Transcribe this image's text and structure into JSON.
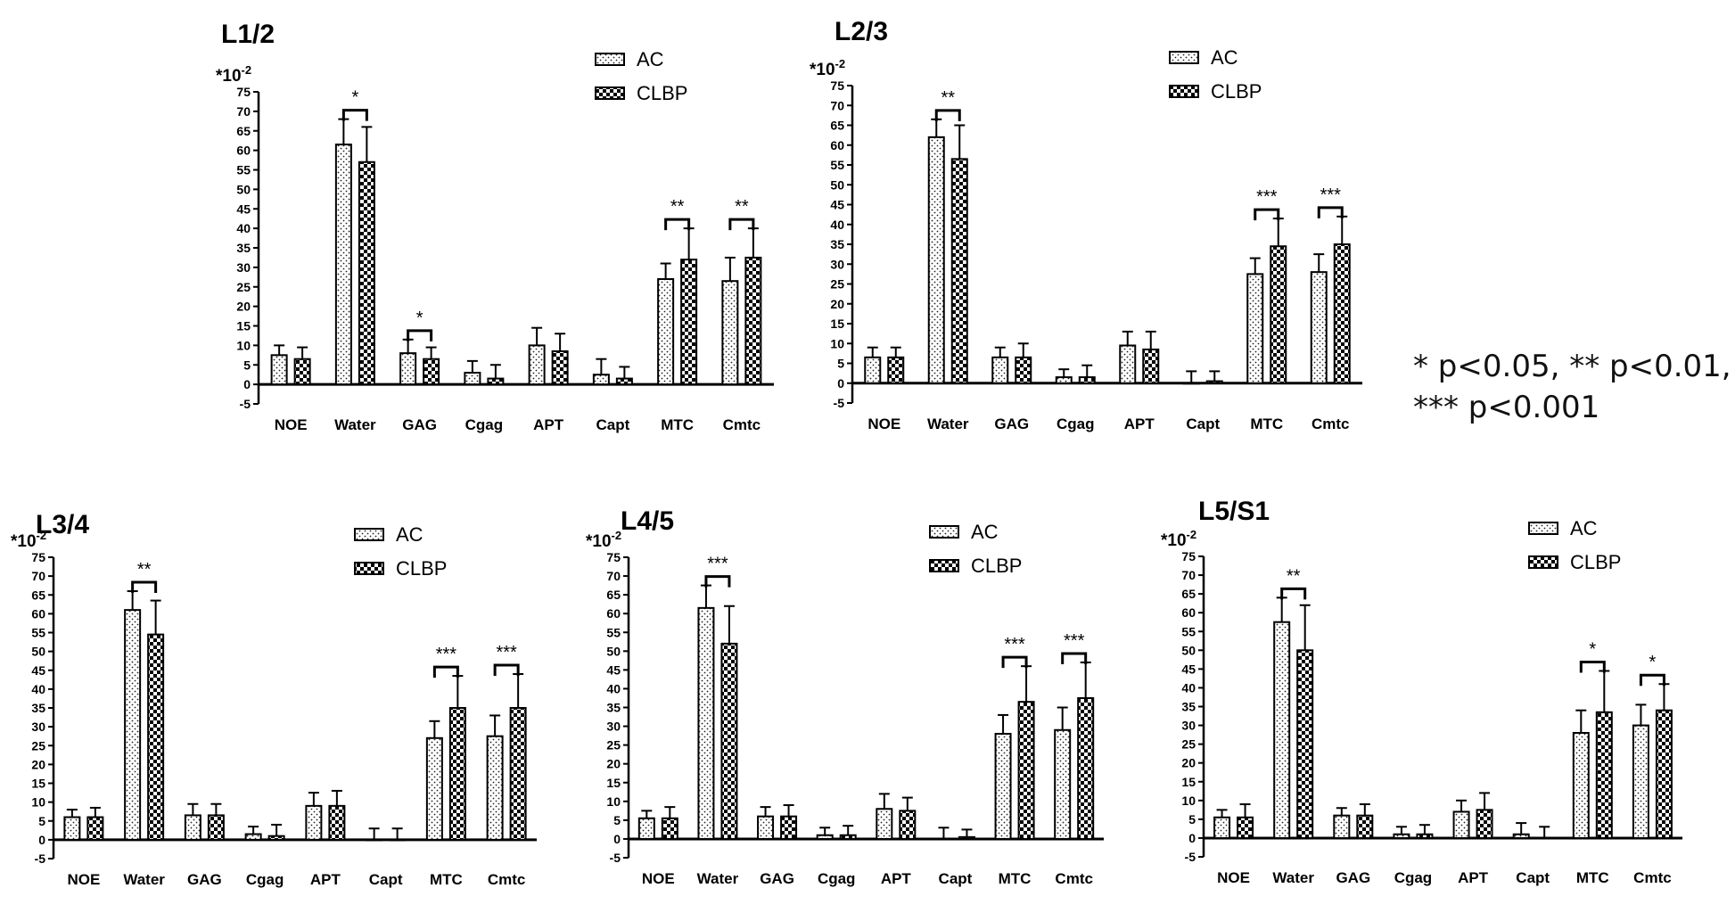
{
  "legend_labels": [
    "AC",
    "CLBP"
  ],
  "scale_label_base": "*10",
  "scale_label_exp": "-2",
  "significance_note": {
    "line1": "* p<0.05, ** p<0.01,",
    "line2": "*** p<0.001"
  },
  "chart_data": [
    {
      "type": "bar",
      "title": "L1/2",
      "categories": [
        "NOE",
        "Water",
        "GAG",
        "Cgag",
        "APT",
        "Capt",
        "MTC",
        "Cmtc"
      ],
      "ylim": [
        -5,
        75
      ],
      "yticks": [
        -5,
        0,
        5,
        10,
        15,
        20,
        25,
        30,
        35,
        40,
        45,
        50,
        55,
        60,
        65,
        70,
        75
      ],
      "series": [
        {
          "name": "AC",
          "values": [
            7.5,
            61.5,
            8,
            3,
            10,
            2.5,
            27,
            26.5
          ],
          "errors": [
            2.5,
            6.5,
            3.5,
            3,
            4.5,
            4,
            4,
            6
          ]
        },
        {
          "name": "CLBP",
          "values": [
            6.5,
            57,
            6.5,
            1.5,
            8.5,
            1.5,
            32,
            32.5
          ],
          "errors": [
            3,
            9,
            3,
            3.5,
            4.5,
            3,
            8,
            7.5
          ]
        }
      ],
      "significance": [
        {
          "category": "Water",
          "label": "*"
        },
        {
          "category": "GAG",
          "label": "*"
        },
        {
          "category": "MTC",
          "label": "**"
        },
        {
          "category": "Cmtc",
          "label": "**"
        }
      ]
    },
    {
      "type": "bar",
      "title": "L2/3",
      "categories": [
        "NOE",
        "Water",
        "GAG",
        "Cgag",
        "APT",
        "Capt",
        "MTC",
        "Cmtc"
      ],
      "ylim": [
        -5,
        75
      ],
      "yticks": [
        -5,
        0,
        5,
        10,
        15,
        20,
        25,
        30,
        35,
        40,
        45,
        50,
        55,
        60,
        65,
        70,
        75
      ],
      "series": [
        {
          "name": "AC",
          "values": [
            6.5,
            62,
            6.5,
            1.5,
            9.5,
            0,
            27.5,
            28
          ],
          "errors": [
            2.5,
            4.5,
            2.5,
            2,
            3.5,
            3,
            4,
            4.5
          ]
        },
        {
          "name": "CLBP",
          "values": [
            6.5,
            56.5,
            6.5,
            1.5,
            8.5,
            0.5,
            34.5,
            35
          ],
          "errors": [
            2.5,
            8.5,
            3.5,
            3,
            4.5,
            2.5,
            7,
            7
          ]
        }
      ],
      "significance": [
        {
          "category": "Water",
          "label": "**"
        },
        {
          "category": "MTC",
          "label": "***"
        },
        {
          "category": "Cmtc",
          "label": "***"
        }
      ]
    },
    {
      "type": "bar",
      "title": "L3/4",
      "categories": [
        "NOE",
        "Water",
        "GAG",
        "Cgag",
        "APT",
        "Capt",
        "MTC",
        "Cmtc"
      ],
      "ylim": [
        -5,
        75
      ],
      "yticks": [
        -5,
        0,
        5,
        10,
        15,
        20,
        25,
        30,
        35,
        40,
        45,
        50,
        55,
        60,
        65,
        70,
        75
      ],
      "series": [
        {
          "name": "AC",
          "values": [
            6,
            61,
            6.5,
            1.5,
            9,
            0,
            27,
            27.5
          ],
          "errors": [
            2,
            5,
            3,
            2,
            3.5,
            3,
            4.5,
            5.5
          ]
        },
        {
          "name": "CLBP",
          "values": [
            6,
            54.5,
            6.5,
            1,
            9,
            0,
            35,
            35
          ],
          "errors": [
            2.5,
            9,
            3,
            3,
            4,
            3,
            8.5,
            9
          ]
        }
      ],
      "significance": [
        {
          "category": "Water",
          "label": "**"
        },
        {
          "category": "MTC",
          "label": "***"
        },
        {
          "category": "Cmtc",
          "label": "***"
        }
      ]
    },
    {
      "type": "bar",
      "title": "L4/5",
      "categories": [
        "NOE",
        "Water",
        "GAG",
        "Cgag",
        "APT",
        "Capt",
        "MTC",
        "Cmtc"
      ],
      "ylim": [
        -5,
        75
      ],
      "yticks": [
        -5,
        0,
        5,
        10,
        15,
        20,
        25,
        30,
        35,
        40,
        45,
        50,
        55,
        60,
        65,
        70,
        75
      ],
      "series": [
        {
          "name": "AC",
          "values": [
            5.5,
            61.5,
            6,
            1,
            8,
            0,
            28,
            29
          ],
          "errors": [
            2,
            6,
            2.5,
            2,
            4,
            3,
            5,
            6
          ]
        },
        {
          "name": "CLBP",
          "values": [
            5.5,
            52,
            6,
            1,
            7.5,
            0.5,
            36.5,
            37.5
          ],
          "errors": [
            3,
            10,
            3,
            2.5,
            3.5,
            2,
            9.5,
            9.5
          ]
        }
      ],
      "significance": [
        {
          "category": "Water",
          "label": "***"
        },
        {
          "category": "MTC",
          "label": "***"
        },
        {
          "category": "Cmtc",
          "label": "***"
        }
      ]
    },
    {
      "type": "bar",
      "title": "L5/S1",
      "categories": [
        "NOE",
        "Water",
        "GAG",
        "Cgag",
        "APT",
        "Capt",
        "MTC",
        "Cmtc"
      ],
      "ylim": [
        -5,
        75
      ],
      "yticks": [
        -5,
        0,
        5,
        10,
        15,
        20,
        25,
        30,
        35,
        40,
        45,
        50,
        55,
        60,
        65,
        70,
        75
      ],
      "series": [
        {
          "name": "AC",
          "values": [
            5.5,
            57.5,
            6,
            1,
            7,
            1,
            28,
            30
          ],
          "errors": [
            2,
            6.5,
            2,
            2,
            3,
            3,
            6,
            5.5
          ]
        },
        {
          "name": "CLBP",
          "values": [
            5.5,
            50,
            6,
            1,
            7.5,
            0,
            33.5,
            34
          ],
          "errors": [
            3.5,
            12,
            3,
            2.5,
            4.5,
            3,
            11,
            7
          ]
        }
      ],
      "significance": [
        {
          "category": "Water",
          "label": "**"
        },
        {
          "category": "MTC",
          "label": "*"
        },
        {
          "category": "Cmtc",
          "label": "*"
        }
      ]
    }
  ]
}
